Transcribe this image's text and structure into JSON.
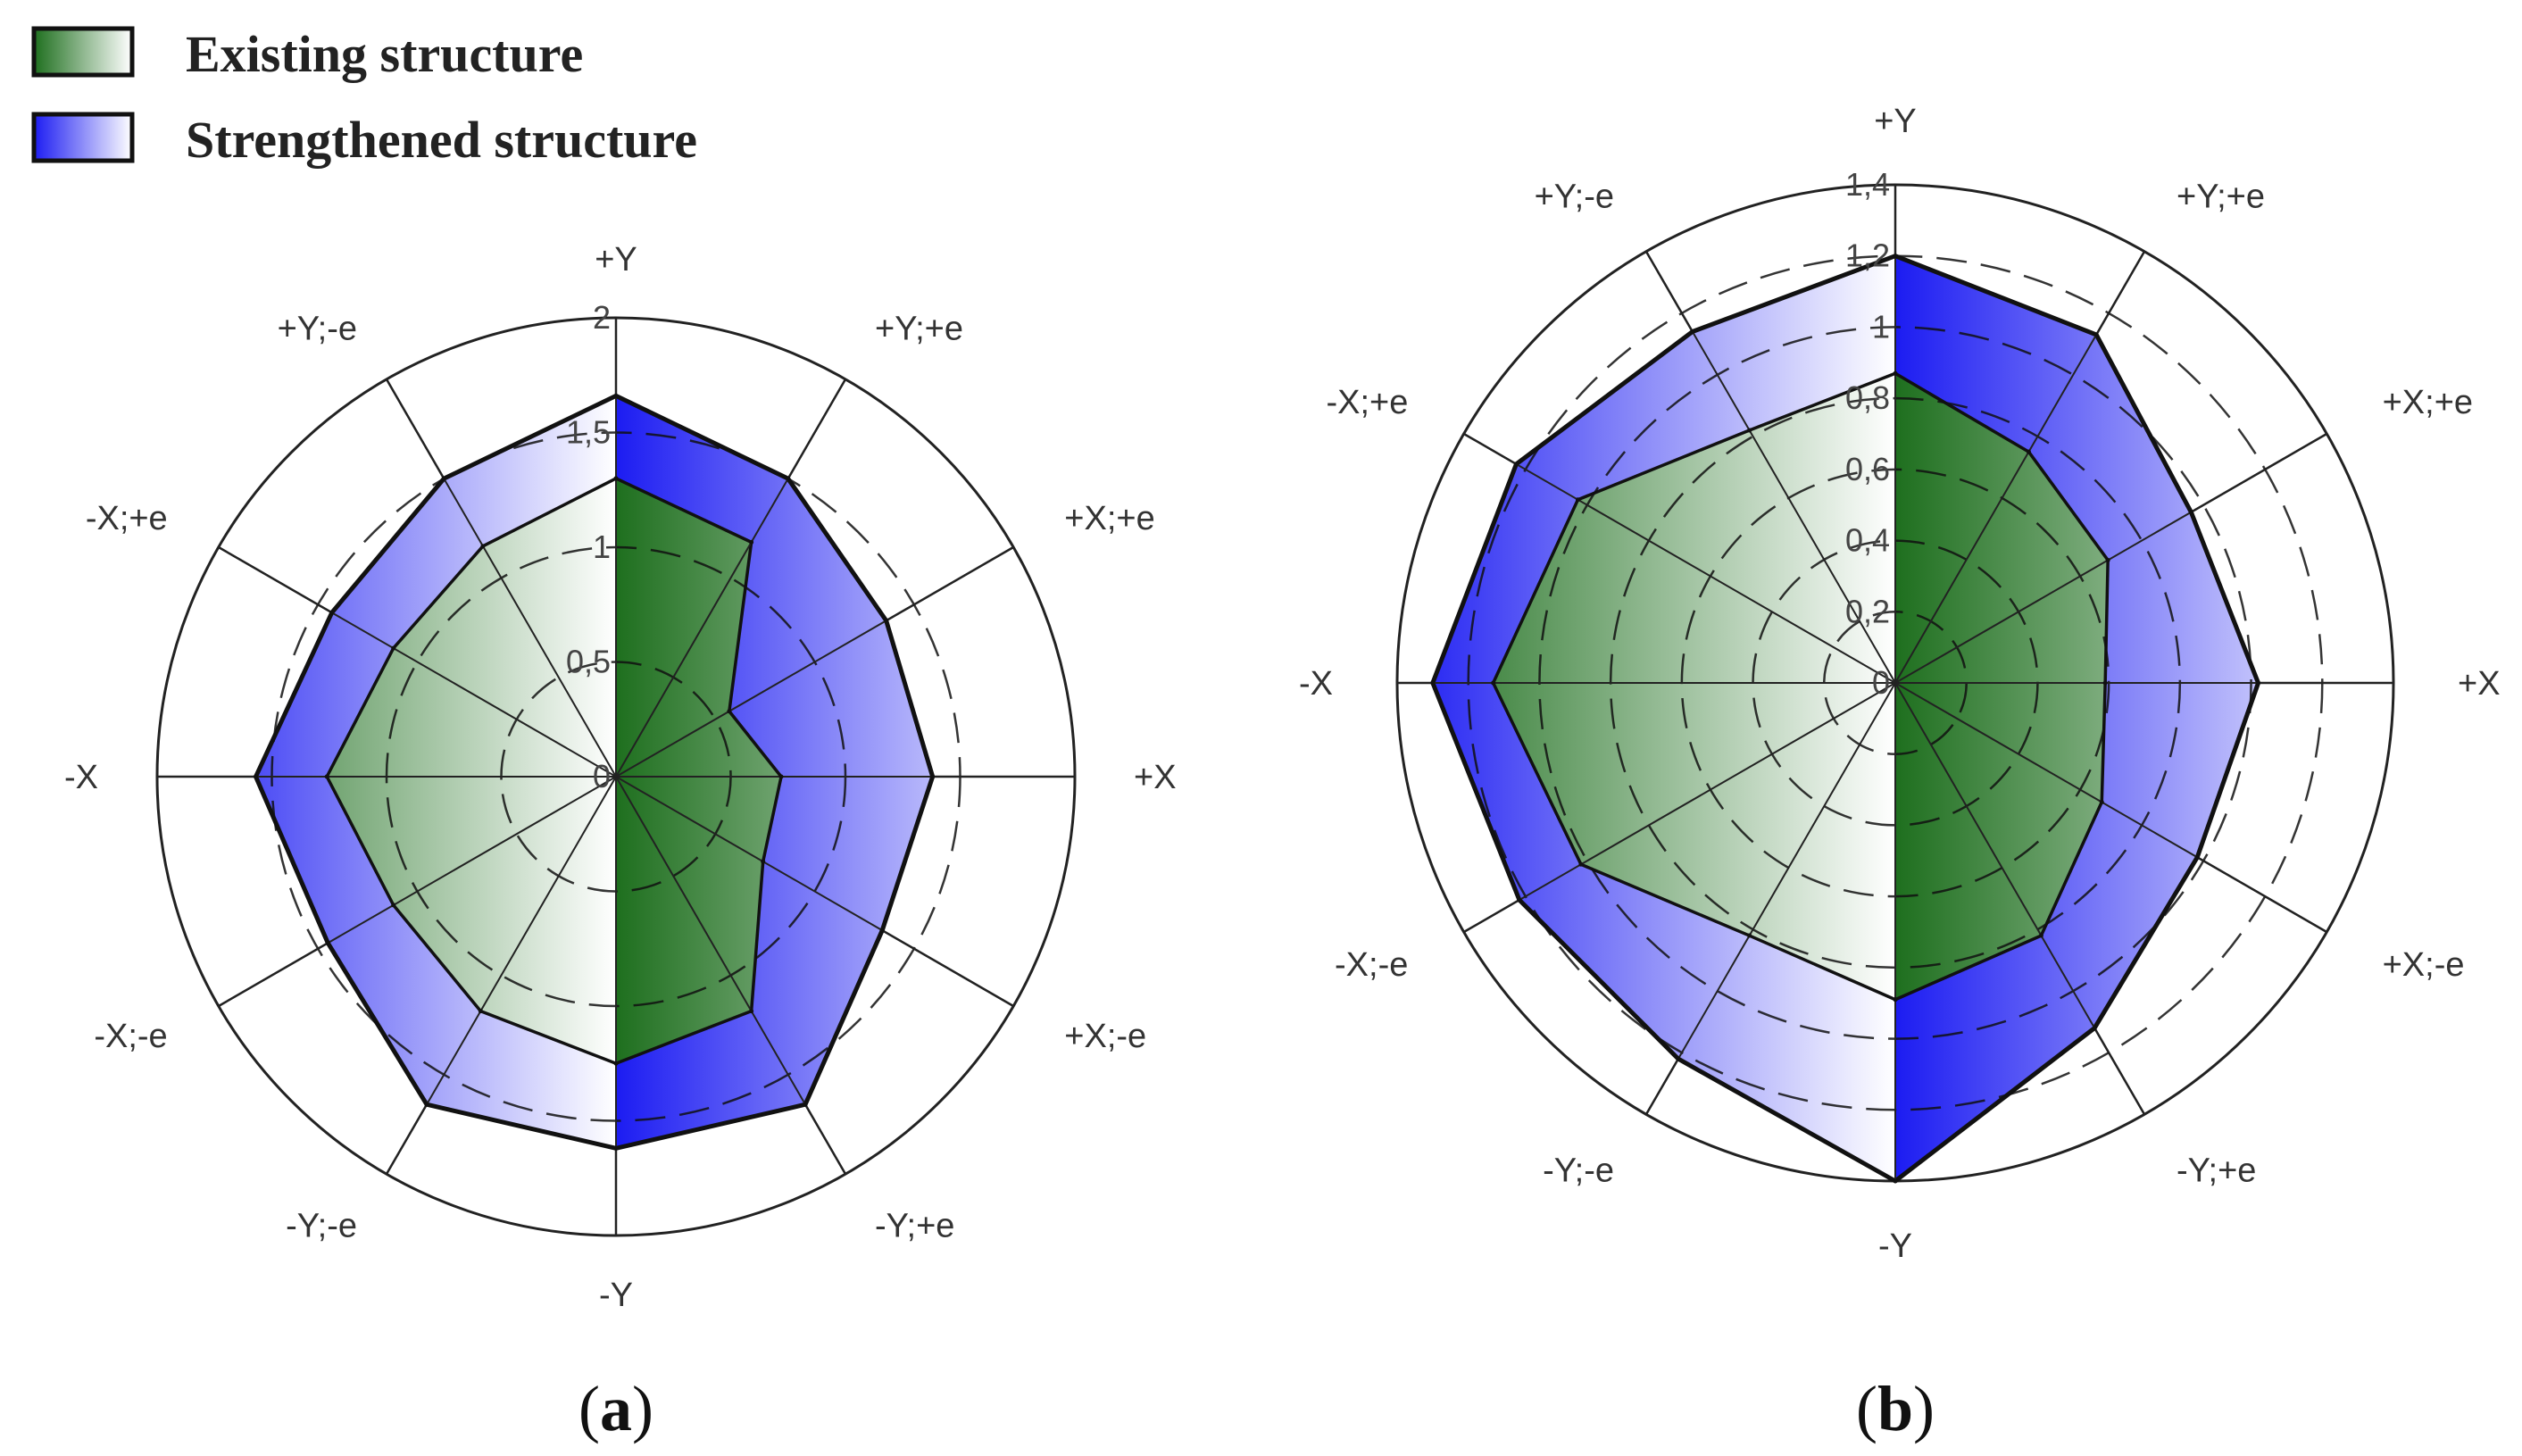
{
  "legend": [
    {
      "label": "Existing structure",
      "color_dark": "#1e6f1e",
      "color_light": "#ffffff"
    },
    {
      "label": "Strengthened structure",
      "color_dark": "#1c1cf2",
      "color_light": "#ffffff"
    }
  ],
  "panels": [
    {
      "label_pre": "(",
      "label_letter": "a",
      "label_post": ")"
    },
    {
      "label_pre": "(",
      "label_letter": "b",
      "label_post": ")"
    }
  ],
  "chart_data": [
    {
      "type": "radar",
      "directions": [
        "+Y",
        "+Y;+e",
        "+X;+e",
        "+X",
        "+X;-e",
        "-Y;+e",
        "-Y",
        "-Y;-e",
        "-X;-e",
        "-X",
        "-X;+e",
        "+Y;-e"
      ],
      "rlim": [
        0,
        2
      ],
      "ticks": [
        0,
        0.5,
        1,
        1.5,
        2
      ],
      "tick_labels": [
        "0",
        "0,5",
        "1",
        "1,5",
        "2"
      ],
      "series": [
        {
          "name": "Existing structure",
          "values": [
            1.3,
            1.18,
            0.57,
            0.72,
            0.74,
            1.18,
            1.25,
            1.18,
            1.12,
            1.26,
            1.12,
            1.16
          ]
        },
        {
          "name": "Strengthened structure",
          "values": [
            1.66,
            1.5,
            1.36,
            1.38,
            1.34,
            1.65,
            1.62,
            1.65,
            1.45,
            1.57,
            1.43,
            1.5
          ]
        }
      ]
    },
    {
      "type": "radar",
      "directions": [
        "+Y",
        "+Y;+e",
        "+X;+e",
        "+X",
        "+X;-e",
        "-Y;+e",
        "-Y",
        "-Y;-e",
        "-X;-e",
        "-X",
        "-X;+e",
        "+Y;-e"
      ],
      "rlim": [
        0,
        1.4
      ],
      "ticks": [
        0,
        0.2,
        0.4,
        0.6,
        0.8,
        1,
        1.2,
        1.4
      ],
      "tick_labels": [
        "0",
        "0,2",
        "0,4",
        "0,6",
        "0,8",
        "1",
        "1,2",
        "1,4"
      ],
      "series": [
        {
          "name": "Existing structure",
          "values": [
            0.87,
            0.75,
            0.69,
            0.59,
            0.67,
            0.82,
            0.89,
            0.82,
            1.02,
            1.13,
            1.03,
            0.82
          ]
        },
        {
          "name": "Strengthened structure",
          "values": [
            1.2,
            1.13,
            0.96,
            1.02,
            0.98,
            1.12,
            1.4,
            1.22,
            1.22,
            1.3,
            1.23,
            1.14
          ]
        }
      ]
    }
  ]
}
